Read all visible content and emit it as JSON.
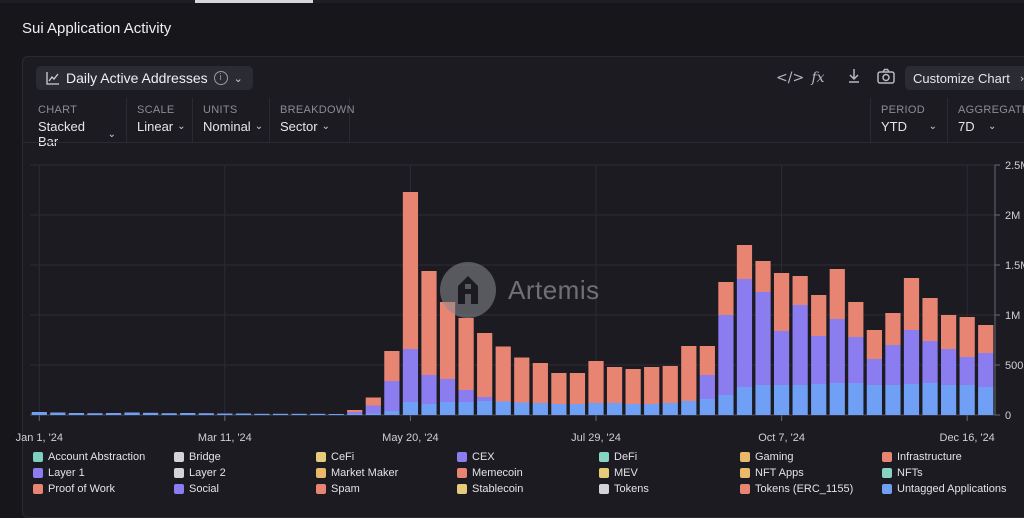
{
  "page": {
    "title": "Sui Application Activity"
  },
  "header": {
    "metric_label": "Daily Active Addresses",
    "customize_label": "Customize Chart",
    "icons": [
      "code-icon",
      "formula-icon",
      "download-icon",
      "camera-icon"
    ],
    "formula_glyph": "fx",
    "code_glyph": "</>"
  },
  "controls": {
    "chart": {
      "label": "CHART",
      "value": "Stacked Bar"
    },
    "scale": {
      "label": "SCALE",
      "value": "Linear"
    },
    "units": {
      "label": "UNITS",
      "value": "Nominal"
    },
    "breakdown": {
      "label": "BREAKDOWN",
      "value": "Sector"
    },
    "period": {
      "label": "PERIOD",
      "value": "YTD"
    },
    "aggregate": {
      "label": "AGGREGATE",
      "value": "7D"
    }
  },
  "watermark": {
    "text": "Artemis"
  },
  "legend": [
    {
      "name": "Account Abstraction",
      "color": "#7ecfc0"
    },
    {
      "name": "Bridge",
      "color": "#d4d4d8"
    },
    {
      "name": "CeFi",
      "color": "#e6cc7a"
    },
    {
      "name": "CEX",
      "color": "#8b7cf0"
    },
    {
      "name": "DeFi",
      "color": "#86d4c4"
    },
    {
      "name": "Gaming",
      "color": "#e8b96a"
    },
    {
      "name": "Infrastructure",
      "color": "#e88572"
    },
    {
      "name": "Layer 1",
      "color": "#8b7cf0"
    },
    {
      "name": "Layer 2",
      "color": "#d4d4d8"
    },
    {
      "name": "Market Maker",
      "color": "#e8b96a"
    },
    {
      "name": "Memecoin",
      "color": "#e88572"
    },
    {
      "name": "MEV",
      "color": "#e6cc7a"
    },
    {
      "name": "NFT Apps",
      "color": "#e8b96a"
    },
    {
      "name": "NFTs",
      "color": "#86d4c4"
    },
    {
      "name": "Proof of Work",
      "color": "#e88572"
    },
    {
      "name": "Social",
      "color": "#8b7cf0"
    },
    {
      "name": "Spam",
      "color": "#e88572"
    },
    {
      "name": "Stablecoin",
      "color": "#e6cc7a"
    },
    {
      "name": "Tokens",
      "color": "#d4d4d8"
    },
    {
      "name": "Tokens (ERC_1155)",
      "color": "#e88572"
    },
    {
      "name": "Untagged Applications",
      "color": "#6fa0f5"
    }
  ],
  "chart_data": {
    "type": "bar",
    "stacked": true,
    "x_tick_labels": [
      "Jan 1, '24",
      "Mar 11, '24",
      "May 20, '24",
      "Jul 29, '24",
      "Oct 7, '24",
      "Dec 16, '24"
    ],
    "y_tick_labels": [
      "0",
      "500K",
      "1M",
      "1.5M",
      "2M",
      "2.5M"
    ],
    "ylim": [
      0,
      2500000
    ],
    "y_axis_position": "right",
    "grid": true,
    "categories": [
      "Jan 1",
      "Jan 8",
      "Jan 15",
      "Jan 22",
      "Jan 29",
      "Feb 5",
      "Feb 12",
      "Feb 19",
      "Feb 26",
      "Mar 4",
      "Mar 11",
      "Mar 18",
      "Mar 25",
      "Apr 1",
      "Apr 8",
      "Apr 15",
      "Apr 22",
      "Apr 29",
      "May 6",
      "May 13",
      "May 20",
      "May 27",
      "Jun 3",
      "Jun 10",
      "Jun 17",
      "Jun 24",
      "Jul 1",
      "Jul 8",
      "Jul 15",
      "Jul 22",
      "Jul 29",
      "Aug 5",
      "Aug 12",
      "Aug 19",
      "Aug 26",
      "Sep 2",
      "Sep 9",
      "Sep 16",
      "Sep 23",
      "Sep 30",
      "Oct 7",
      "Oct 14",
      "Oct 21",
      "Oct 28",
      "Nov 4",
      "Nov 11",
      "Nov 18",
      "Nov 25",
      "Dec 2",
      "Dec 9",
      "Dec 16",
      "Dec 23"
    ],
    "series": [
      {
        "name": "Untagged Applications",
        "color": "#6fa0f5",
        "values": [
          30000,
          25000,
          20000,
          18000,
          20000,
          25000,
          22000,
          18000,
          20000,
          18000,
          15000,
          15000,
          12000,
          12000,
          12000,
          12000,
          10000,
          10000,
          15000,
          40000,
          130000,
          110000,
          130000,
          130000,
          140000,
          135000,
          125000,
          120000,
          110000,
          110000,
          120000,
          120000,
          110000,
          110000,
          120000,
          140000,
          160000,
          200000,
          280000,
          300000,
          300000,
          300000,
          310000,
          320000,
          320000,
          300000,
          300000,
          310000,
          320000,
          300000,
          300000,
          280000
        ]
      },
      {
        "name": "Layer 1",
        "color": "#8b7cf0",
        "values": [
          0,
          0,
          0,
          0,
          0,
          0,
          0,
          0,
          0,
          0,
          0,
          0,
          0,
          0,
          0,
          0,
          0,
          20000,
          80000,
          300000,
          530000,
          290000,
          230000,
          120000,
          40000,
          0,
          0,
          0,
          0,
          0,
          0,
          0,
          0,
          0,
          0,
          0,
          240000,
          800000,
          1080000,
          930000,
          540000,
          800000,
          480000,
          640000,
          460000,
          260000,
          400000,
          540000,
          420000,
          360000,
          280000,
          340000
        ]
      },
      {
        "name": "Infrastructure",
        "color": "#e88572",
        "values": [
          0,
          0,
          0,
          0,
          0,
          0,
          0,
          0,
          0,
          0,
          0,
          0,
          0,
          0,
          0,
          0,
          0,
          20000,
          80000,
          300000,
          1570000,
          1040000,
          770000,
          720000,
          640000,
          550000,
          450000,
          400000,
          310000,
          310000,
          420000,
          360000,
          350000,
          370000,
          370000,
          550000,
          290000,
          330000,
          340000,
          310000,
          580000,
          290000,
          410000,
          500000,
          350000,
          290000,
          320000,
          520000,
          430000,
          340000,
          400000,
          280000
        ]
      }
    ]
  }
}
